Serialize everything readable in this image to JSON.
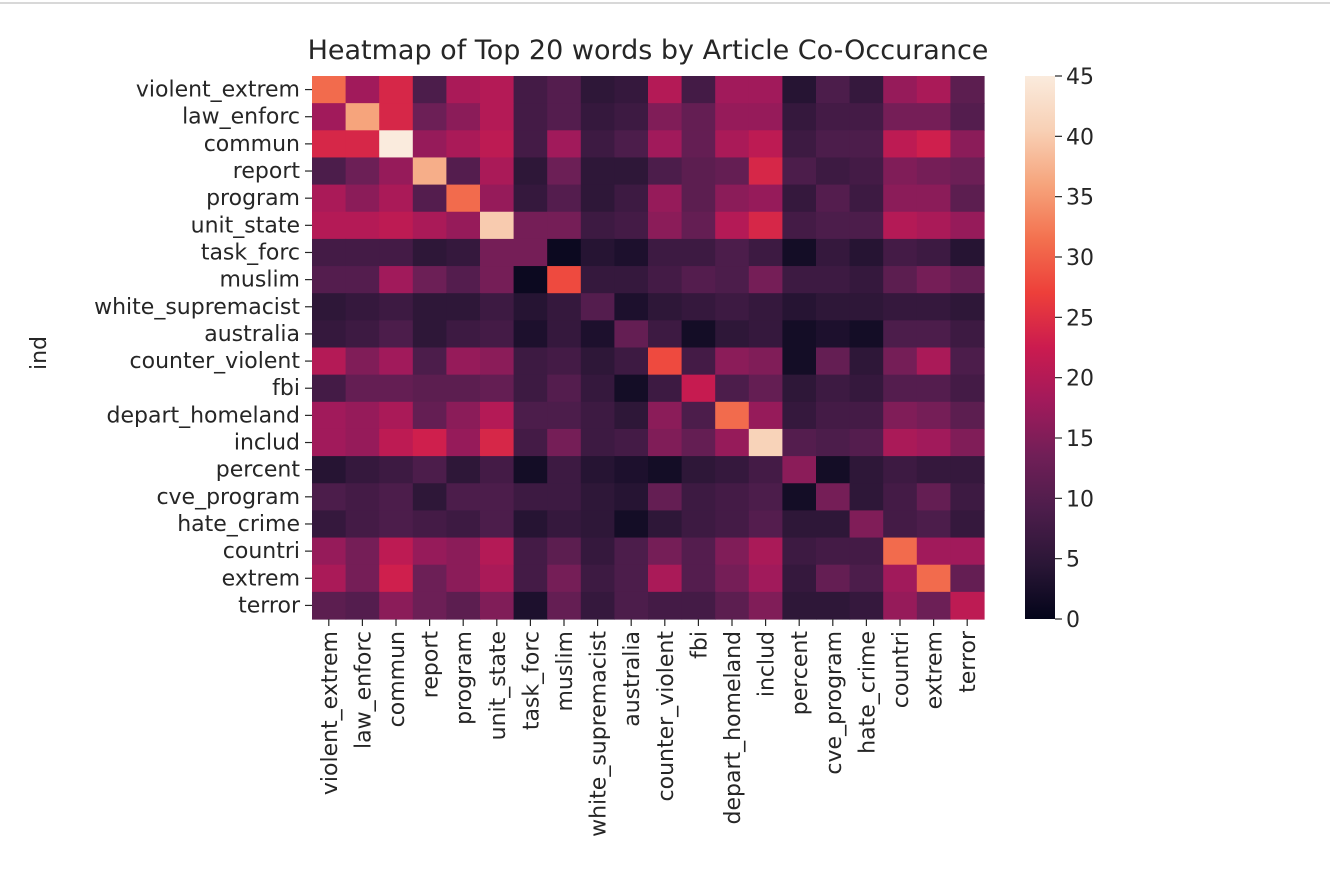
{
  "chart_data": {
    "type": "heatmap",
    "title": "Heatmap of Top 20 words by Article Co-Occurance",
    "ylabel": "ind",
    "xlabel": "",
    "row_labels": [
      "violent_extrem",
      "law_enforc",
      "commun",
      "report",
      "program",
      "unit_state",
      "task_forc",
      "muslim",
      "white_supremacist",
      "australia",
      "counter_violent",
      "fbi",
      "depart_homeland",
      "includ",
      "percent",
      "cve_program",
      "hate_crime",
      "countri",
      "extrem",
      "terror"
    ],
    "col_labels": [
      "violent_extrem",
      "law_enforc",
      "commun",
      "report",
      "program",
      "unit_state",
      "task_forc",
      "muslim",
      "white_supremacist",
      "australia",
      "counter_violent",
      "fbi",
      "depart_homeland",
      "includ",
      "percent",
      "cve_program",
      "hate_crime",
      "countri",
      "extrem",
      "terror"
    ],
    "values": [
      [
        31,
        18,
        24,
        9,
        19,
        20,
        8,
        10,
        5,
        6,
        20,
        8,
        18,
        18,
        4,
        9,
        6,
        17,
        19,
        11
      ],
      [
        18,
        36,
        24,
        13,
        16,
        20,
        8,
        10,
        6,
        7,
        15,
        12,
        17,
        17,
        6,
        8,
        8,
        14,
        14,
        10
      ],
      [
        24,
        24,
        45,
        17,
        19,
        21,
        8,
        18,
        7,
        9,
        18,
        12,
        19,
        21,
        7,
        9,
        9,
        21,
        23,
        16
      ],
      [
        9,
        13,
        17,
        37,
        10,
        19,
        5,
        13,
        5,
        5,
        9,
        11,
        12,
        24,
        9,
        7,
        8,
        15,
        14,
        13
      ],
      [
        19,
        16,
        19,
        10,
        31,
        17,
        6,
        10,
        5,
        7,
        17,
        11,
        16,
        17,
        6,
        10,
        7,
        16,
        16,
        11
      ],
      [
        20,
        20,
        21,
        19,
        17,
        40,
        14,
        14,
        7,
        8,
        16,
        12,
        20,
        24,
        8,
        9,
        9,
        20,
        19,
        17
      ],
      [
        8,
        8,
        8,
        5,
        6,
        14,
        14,
        1,
        4,
        3,
        7,
        7,
        9,
        7,
        2,
        6,
        4,
        8,
        7,
        4
      ],
      [
        10,
        10,
        18,
        13,
        10,
        14,
        1,
        28,
        6,
        6,
        8,
        10,
        9,
        14,
        7,
        7,
        6,
        11,
        14,
        12
      ],
      [
        5,
        6,
        7,
        5,
        5,
        7,
        4,
        6,
        10,
        3,
        5,
        6,
        7,
        6,
        4,
        5,
        5,
        6,
        6,
        5
      ],
      [
        6,
        7,
        9,
        5,
        7,
        8,
        3,
        6,
        3,
        12,
        7,
        2,
        5,
        6,
        2,
        3,
        2,
        9,
        9,
        7
      ],
      [
        20,
        15,
        18,
        9,
        17,
        16,
        7,
        8,
        5,
        7,
        28,
        8,
        16,
        15,
        2,
        12,
        5,
        14,
        19,
        9
      ],
      [
        8,
        12,
        12,
        11,
        11,
        12,
        7,
        10,
        6,
        2,
        7,
        22,
        9,
        12,
        5,
        7,
        6,
        10,
        10,
        8
      ],
      [
        18,
        17,
        19,
        12,
        16,
        20,
        9,
        9,
        7,
        5,
        16,
        9,
        31,
        17,
        6,
        8,
        8,
        15,
        14,
        11
      ],
      [
        18,
        17,
        21,
        23,
        17,
        24,
        8,
        14,
        7,
        8,
        15,
        12,
        17,
        41,
        10,
        9,
        10,
        19,
        18,
        15
      ],
      [
        4,
        6,
        7,
        9,
        5,
        8,
        2,
        7,
        4,
        3,
        2,
        5,
        6,
        8,
        16,
        2,
        5,
        7,
        6,
        6
      ],
      [
        9,
        8,
        9,
        5,
        9,
        9,
        7,
        7,
        5,
        4,
        12,
        7,
        8,
        9,
        2,
        14,
        5,
        8,
        12,
        7
      ],
      [
        6,
        8,
        9,
        8,
        7,
        9,
        4,
        6,
        5,
        2,
        5,
        7,
        8,
        10,
        5,
        5,
        15,
        8,
        9,
        6
      ],
      [
        17,
        14,
        21,
        17,
        16,
        20,
        8,
        11,
        6,
        9,
        14,
        10,
        15,
        19,
        7,
        8,
        8,
        31,
        18,
        18
      ],
      [
        19,
        14,
        23,
        13,
        16,
        19,
        8,
        14,
        7,
        9,
        19,
        10,
        14,
        18,
        6,
        12,
        9,
        18,
        31,
        12
      ],
      [
        11,
        10,
        16,
        13,
        11,
        15,
        3,
        12,
        6,
        9,
        8,
        8,
        11,
        15,
        5,
        5,
        6,
        17,
        13,
        21
      ]
    ],
    "vmin": 0,
    "vmax": 45,
    "colorbar_ticks": [
      0,
      5,
      10,
      15,
      20,
      25,
      30,
      35,
      40,
      45
    ],
    "colormap": "rocket",
    "colormap_stops": [
      "#03051a",
      "#2a1636",
      "#4c1d4b",
      "#701f57",
      "#a11a5b",
      "#cb1b4f",
      "#ed3f3a",
      "#f3714f",
      "#f6a47c",
      "#f8d0b5",
      "#faebdd"
    ]
  }
}
